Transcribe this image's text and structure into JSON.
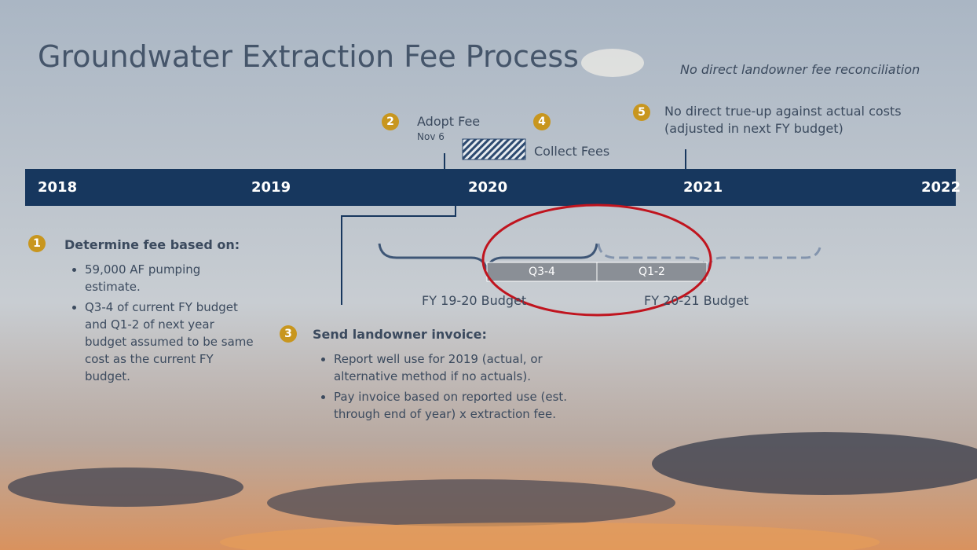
{
  "header": {
    "title": "Groundwater Extraction Fee Process",
    "subtitle": "No direct landowner fee reconciliation"
  },
  "timeline": {
    "years": [
      "2018",
      "2019",
      "2020",
      "2021",
      "2022"
    ]
  },
  "steps": [
    {
      "number": "1",
      "heading": "Determine fee based on:",
      "bullets": [
        "59,000 AF pumping estimate.",
        "Q3-4 of current FY budget and Q1-2 of next year budget assumed to be same cost as the current FY budget."
      ]
    },
    {
      "number": "2",
      "label": "Adopt Fee",
      "date": "Nov 6"
    },
    {
      "number": "3",
      "heading": "Send landowner invoice:",
      "bullets": [
        "Report well use for 2019 (actual, or alternative method if no actuals).",
        "Pay invoice based on reported use (est. through end of year) x extraction fee."
      ]
    },
    {
      "number": "4",
      "label": "Collect Fees"
    },
    {
      "number": "5",
      "label": "No direct true-up against actual costs (adjusted in next FY budget)"
    }
  ],
  "budget": {
    "quarters": [
      "Q3-4",
      "Q1-2"
    ],
    "labels": [
      "FY 19-20 Budget",
      "FY 20-21 Budget"
    ]
  }
}
